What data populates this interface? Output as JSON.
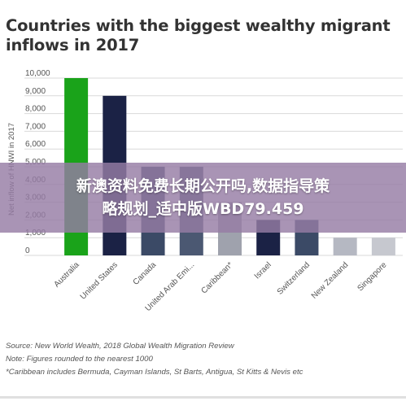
{
  "chart_data": {
    "type": "bar",
    "title": "Countries with the biggest wealthy migrant inflows in 2017",
    "ylabel": "Net inflow of HNWI in 2017",
    "xlabel": "",
    "categories": [
      "Australia",
      "United States",
      "Canada",
      "United Arab Emi...",
      "Caribbean*",
      "Israel",
      "Switzerland",
      "New Zealand",
      "Singapore"
    ],
    "values": [
      10000,
      9000,
      5000,
      5000,
      3000,
      2000,
      2000,
      1000,
      1000
    ],
    "ylim": [
      0,
      10000
    ],
    "yticks": [
      "0",
      "1,000",
      "2,000",
      "3,000",
      "4,000",
      "5,000",
      "6,000",
      "7,000",
      "8,000",
      "9,000",
      "10,000"
    ],
    "colors": [
      "#1aa31a",
      "#1b2245",
      "#3b4a66",
      "#4b5872",
      "#9fa2ad",
      "#1b2245",
      "#3b4a66",
      "#b5b8c2",
      "#c6c8cf"
    ],
    "grid": true,
    "legend": "none"
  },
  "banner": {
    "line1": "新澳资料免费长期公开吗,数据指导策",
    "line2": "略规划_适中版WBD79.459"
  },
  "footer": {
    "source": "Source: New World Wealth, 2018 Global Wealth Migration Review",
    "note": "Note: Figures rounded to the nearest 1000",
    "footnote": "*Caribbean includes Bermuda, Cayman Islands, St Barts, Antigua, St Kitts & Nevis etc"
  }
}
